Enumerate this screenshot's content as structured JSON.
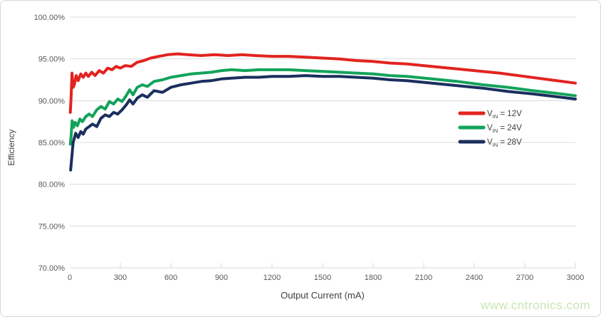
{
  "frame": {
    "background": "#ffffff",
    "border_color": "#d6d6d6"
  },
  "watermark": {
    "text": "www.cntronics.com",
    "color": "#c9e5b4"
  },
  "chart_data": {
    "type": "line",
    "title": "",
    "xlabel": "Output Current (mA)",
    "ylabel": "Efficiency",
    "xlim": [
      0,
      3000
    ],
    "ylim": [
      70,
      100
    ],
    "grid": "horizontal",
    "grid_color": "#d9d9d9",
    "tick_label_color": "#595959",
    "axis_title_color": "#404040",
    "legend_position": "inside-right-middle",
    "x_ticks": [
      0,
      300,
      600,
      900,
      1200,
      1500,
      1800,
      2100,
      2400,
      2700,
      3000
    ],
    "y_ticks": [
      100,
      95,
      90,
      85,
      80,
      75,
      70
    ],
    "y_tick_labels": [
      "100.00%",
      "95.00%",
      "90.00%",
      "85.00%",
      "80.00%",
      "75.00%",
      "70.00%"
    ],
    "series": [
      {
        "name": "VIN = 12V",
        "legend": {
          "base": "V",
          "sub": "IN",
          "rest": " = 12V"
        },
        "color": "#e2231f",
        "points": [
          [
            3,
            88.6
          ],
          [
            8,
            90.5
          ],
          [
            13,
            93.3
          ],
          [
            20,
            91.6
          ],
          [
            28,
            92.0
          ],
          [
            38,
            93.0
          ],
          [
            50,
            92.4
          ],
          [
            65,
            93.2
          ],
          [
            80,
            92.8
          ],
          [
            95,
            93.3
          ],
          [
            110,
            92.9
          ],
          [
            130,
            93.4
          ],
          [
            150,
            93.0
          ],
          [
            175,
            93.6
          ],
          [
            200,
            93.3
          ],
          [
            225,
            93.9
          ],
          [
            250,
            93.7
          ],
          [
            275,
            94.1
          ],
          [
            300,
            93.9
          ],
          [
            330,
            94.2
          ],
          [
            365,
            94.1
          ],
          [
            400,
            94.6
          ],
          [
            440,
            94.8
          ],
          [
            480,
            95.1
          ],
          [
            530,
            95.3
          ],
          [
            580,
            95.5
          ],
          [
            640,
            95.6
          ],
          [
            700,
            95.5
          ],
          [
            780,
            95.4
          ],
          [
            860,
            95.5
          ],
          [
            940,
            95.4
          ],
          [
            1020,
            95.5
          ],
          [
            1100,
            95.4
          ],
          [
            1200,
            95.3
          ],
          [
            1300,
            95.3
          ],
          [
            1400,
            95.2
          ],
          [
            1500,
            95.1
          ],
          [
            1600,
            95.0
          ],
          [
            1700,
            94.8
          ],
          [
            1800,
            94.7
          ],
          [
            1900,
            94.5
          ],
          [
            2000,
            94.4
          ],
          [
            2100,
            94.2
          ],
          [
            2250,
            93.9
          ],
          [
            2400,
            93.6
          ],
          [
            2550,
            93.3
          ],
          [
            2700,
            92.9
          ],
          [
            2850,
            92.5
          ],
          [
            3000,
            92.1
          ]
        ]
      },
      {
        "name": "VIN = 24V",
        "legend": {
          "base": "V",
          "sub": "IN",
          "rest": " = 24V"
        },
        "color": "#12a35a",
        "points": [
          [
            3,
            84.8
          ],
          [
            8,
            85.8
          ],
          [
            14,
            87.6
          ],
          [
            22,
            86.8
          ],
          [
            32,
            87.4
          ],
          [
            45,
            87.0
          ],
          [
            60,
            87.8
          ],
          [
            75,
            87.5
          ],
          [
            95,
            88.1
          ],
          [
            115,
            88.4
          ],
          [
            135,
            88.1
          ],
          [
            160,
            88.9
          ],
          [
            185,
            89.3
          ],
          [
            210,
            89.0
          ],
          [
            235,
            89.9
          ],
          [
            260,
            89.6
          ],
          [
            285,
            90.2
          ],
          [
            310,
            89.9
          ],
          [
            335,
            90.6
          ],
          [
            355,
            91.3
          ],
          [
            375,
            90.7
          ],
          [
            400,
            91.6
          ],
          [
            430,
            91.9
          ],
          [
            460,
            91.7
          ],
          [
            500,
            92.3
          ],
          [
            550,
            92.5
          ],
          [
            600,
            92.8
          ],
          [
            660,
            93.0
          ],
          [
            720,
            93.2
          ],
          [
            780,
            93.3
          ],
          [
            840,
            93.4
          ],
          [
            900,
            93.6
          ],
          [
            960,
            93.7
          ],
          [
            1040,
            93.6
          ],
          [
            1120,
            93.7
          ],
          [
            1200,
            93.7
          ],
          [
            1300,
            93.7
          ],
          [
            1400,
            93.6
          ],
          [
            1500,
            93.5
          ],
          [
            1600,
            93.4
          ],
          [
            1700,
            93.3
          ],
          [
            1800,
            93.2
          ],
          [
            1900,
            93.0
          ],
          [
            2000,
            92.9
          ],
          [
            2150,
            92.6
          ],
          [
            2300,
            92.3
          ],
          [
            2450,
            91.9
          ],
          [
            2600,
            91.6
          ],
          [
            2750,
            91.2
          ],
          [
            2880,
            90.9
          ],
          [
            3000,
            90.6
          ]
        ]
      },
      {
        "name": "VIN = 28V",
        "legend": {
          "base": "V",
          "sub": "IN",
          "rest": " = 28V"
        },
        "color": "#1b2f5e",
        "points": [
          [
            5,
            81.7
          ],
          [
            12,
            83.2
          ],
          [
            20,
            85.0
          ],
          [
            35,
            86.1
          ],
          [
            50,
            85.6
          ],
          [
            65,
            86.3
          ],
          [
            80,
            86.0
          ],
          [
            95,
            86.6
          ],
          [
            115,
            86.9
          ],
          [
            135,
            87.2
          ],
          [
            160,
            86.9
          ],
          [
            185,
            87.9
          ],
          [
            210,
            88.3
          ],
          [
            235,
            88.1
          ],
          [
            260,
            88.6
          ],
          [
            285,
            88.4
          ],
          [
            310,
            88.9
          ],
          [
            335,
            89.5
          ],
          [
            355,
            90.1
          ],
          [
            375,
            89.6
          ],
          [
            400,
            90.3
          ],
          [
            430,
            90.7
          ],
          [
            460,
            90.4
          ],
          [
            500,
            91.2
          ],
          [
            550,
            91.0
          ],
          [
            600,
            91.6
          ],
          [
            660,
            91.9
          ],
          [
            720,
            92.1
          ],
          [
            780,
            92.3
          ],
          [
            840,
            92.4
          ],
          [
            900,
            92.6
          ],
          [
            960,
            92.7
          ],
          [
            1040,
            92.8
          ],
          [
            1120,
            92.8
          ],
          [
            1200,
            92.9
          ],
          [
            1300,
            92.9
          ],
          [
            1400,
            93.0
          ],
          [
            1500,
            92.9
          ],
          [
            1600,
            92.9
          ],
          [
            1700,
            92.8
          ],
          [
            1800,
            92.7
          ],
          [
            1900,
            92.5
          ],
          [
            2000,
            92.4
          ],
          [
            2150,
            92.1
          ],
          [
            2300,
            91.8
          ],
          [
            2450,
            91.5
          ],
          [
            2600,
            91.1
          ],
          [
            2750,
            90.8
          ],
          [
            2880,
            90.5
          ],
          [
            3000,
            90.2
          ]
        ]
      }
    ]
  }
}
